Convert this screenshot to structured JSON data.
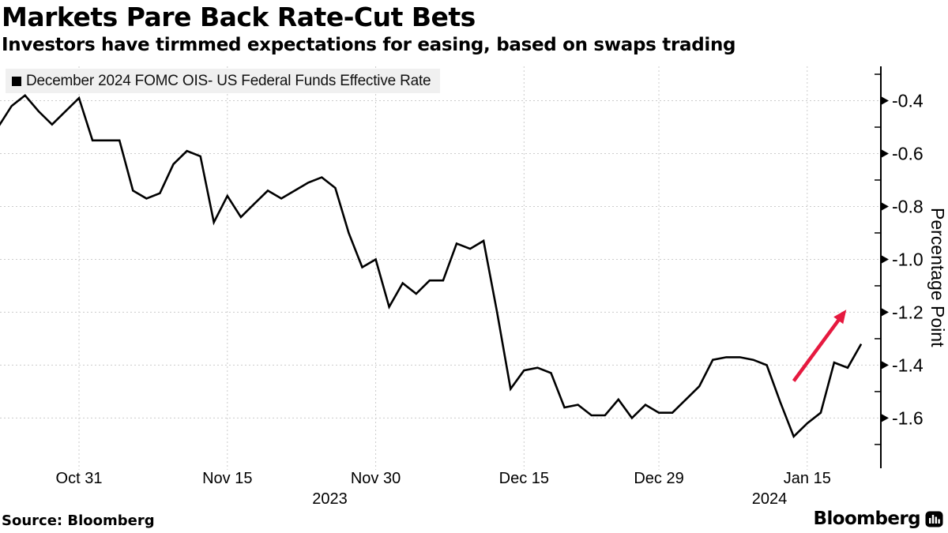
{
  "header": {
    "title": "Markets Pare Back Rate-Cut Bets",
    "subtitle": "Investors have tirmmed expectations for easing, based on swaps trading"
  },
  "legend": {
    "swatch_color": "#000000",
    "label": "December 2024 FOMC OIS- US Federal Funds Effective Rate"
  },
  "footer": {
    "source": "Source: Bloomberg",
    "brand": "Bloomberg"
  },
  "colors": {
    "line": "#000000",
    "grid": "#cccccc",
    "axis": "#000000",
    "arrow": "#e6193f",
    "legend_bg": "#f0f0f0"
  },
  "chart_data": {
    "type": "line",
    "title": "Markets Pare Back Rate-Cut Bets",
    "grid": true,
    "legend_position": "top-left",
    "y_axis": {
      "title": "Percentage Point",
      "major_ticks": [
        -0.4,
        -0.6,
        -0.8,
        -1.0,
        -1.2,
        -1.4,
        -1.6
      ],
      "minor_ticks": [
        -0.3,
        -0.5,
        -0.7,
        -0.9,
        -1.1,
        -1.3,
        -1.5,
        -1.7
      ],
      "range": [
        -1.79,
        -0.27
      ],
      "side": "right"
    },
    "x_axis": {
      "tick_labels": [
        {
          "label": "Oct 31",
          "point_index": 6
        },
        {
          "label": "Nov 15",
          "point_index": 17
        },
        {
          "label": "Nov 30",
          "point_index": 28
        },
        {
          "label": "Dec 15",
          "point_index": 39
        },
        {
          "label": "Dec 29",
          "point_index": 49
        },
        {
          "label": "Jan 15",
          "point_index": 60
        }
      ],
      "year_labels": [
        {
          "label": "2023",
          "point_index": 24.6
        },
        {
          "label": "2024",
          "point_index": 57.2
        }
      ]
    },
    "annotation_arrow": {
      "color": "#e6193f",
      "from": {
        "point_index": 59.0,
        "value": -1.46
      },
      "to": {
        "point_index": 62.9,
        "value": -1.19
      }
    },
    "series": [
      {
        "name": "December 2024 FOMC OIS- US Federal Funds Effective Rate",
        "color": "#000000",
        "points": [
          {
            "d": "Oct 23",
            "v": -0.5
          },
          {
            "d": "Oct 24",
            "v": -0.42
          },
          {
            "d": "Oct 25",
            "v": -0.38
          },
          {
            "d": "Oct 26",
            "v": -0.44
          },
          {
            "d": "Oct 27",
            "v": -0.49
          },
          {
            "d": "Oct 30",
            "v": -0.44
          },
          {
            "d": "Oct 31",
            "v": -0.39
          },
          {
            "d": "Nov 1",
            "v": -0.55
          },
          {
            "d": "Nov 2",
            "v": -0.55
          },
          {
            "d": "Nov 3",
            "v": -0.55
          },
          {
            "d": "Nov 6",
            "v": -0.74
          },
          {
            "d": "Nov 7",
            "v": -0.77
          },
          {
            "d": "Nov 8",
            "v": -0.75
          },
          {
            "d": "Nov 9",
            "v": -0.64
          },
          {
            "d": "Nov 10",
            "v": -0.59
          },
          {
            "d": "Nov 13",
            "v": -0.61
          },
          {
            "d": "Nov 14",
            "v": -0.86
          },
          {
            "d": "Nov 15",
            "v": -0.76
          },
          {
            "d": "Nov 16",
            "v": -0.84
          },
          {
            "d": "Nov 17",
            "v": -0.79
          },
          {
            "d": "Nov 20",
            "v": -0.74
          },
          {
            "d": "Nov 21",
            "v": -0.77
          },
          {
            "d": "Nov 22",
            "v": -0.74
          },
          {
            "d": "Nov 23",
            "v": -0.71
          },
          {
            "d": "Nov 24",
            "v": -0.69
          },
          {
            "d": "Nov 27",
            "v": -0.73
          },
          {
            "d": "Nov 28",
            "v": -0.9
          },
          {
            "d": "Nov 29",
            "v": -1.03
          },
          {
            "d": "Nov 30",
            "v": -1.0
          },
          {
            "d": "Dec 1",
            "v": -1.18
          },
          {
            "d": "Dec 4",
            "v": -1.09
          },
          {
            "d": "Dec 5",
            "v": -1.13
          },
          {
            "d": "Dec 6",
            "v": -1.08
          },
          {
            "d": "Dec 7",
            "v": -1.08
          },
          {
            "d": "Dec 8",
            "v": -0.94
          },
          {
            "d": "Dec 11",
            "v": -0.96
          },
          {
            "d": "Dec 12",
            "v": -0.93
          },
          {
            "d": "Dec 13",
            "v": -1.2
          },
          {
            "d": "Dec 14",
            "v": -1.49
          },
          {
            "d": "Dec 15",
            "v": -1.42
          },
          {
            "d": "Dec 18",
            "v": -1.41
          },
          {
            "d": "Dec 19",
            "v": -1.43
          },
          {
            "d": "Dec 20",
            "v": -1.56
          },
          {
            "d": "Dec 21",
            "v": -1.55
          },
          {
            "d": "Dec 22",
            "v": -1.59
          },
          {
            "d": "Dec 25",
            "v": -1.59
          },
          {
            "d": "Dec 26",
            "v": -1.53
          },
          {
            "d": "Dec 27",
            "v": -1.6
          },
          {
            "d": "Dec 28",
            "v": -1.55
          },
          {
            "d": "Dec 29",
            "v": -1.58
          },
          {
            "d": "Jan 1",
            "v": -1.58
          },
          {
            "d": "Jan 2",
            "v": -1.53
          },
          {
            "d": "Jan 3",
            "v": -1.48
          },
          {
            "d": "Jan 4",
            "v": -1.38
          },
          {
            "d": "Jan 5",
            "v": -1.37
          },
          {
            "d": "Jan 8",
            "v": -1.37
          },
          {
            "d": "Jan 9",
            "v": -1.38
          },
          {
            "d": "Jan 10",
            "v": -1.4
          },
          {
            "d": "Jan 11",
            "v": -1.54
          },
          {
            "d": "Jan 12",
            "v": -1.67
          },
          {
            "d": "Jan 15",
            "v": -1.62
          },
          {
            "d": "Jan 16",
            "v": -1.58
          },
          {
            "d": "Jan 17",
            "v": -1.39
          },
          {
            "d": "Jan 18",
            "v": -1.41
          },
          {
            "d": "Jan 19",
            "v": -1.32
          }
        ]
      }
    ]
  }
}
